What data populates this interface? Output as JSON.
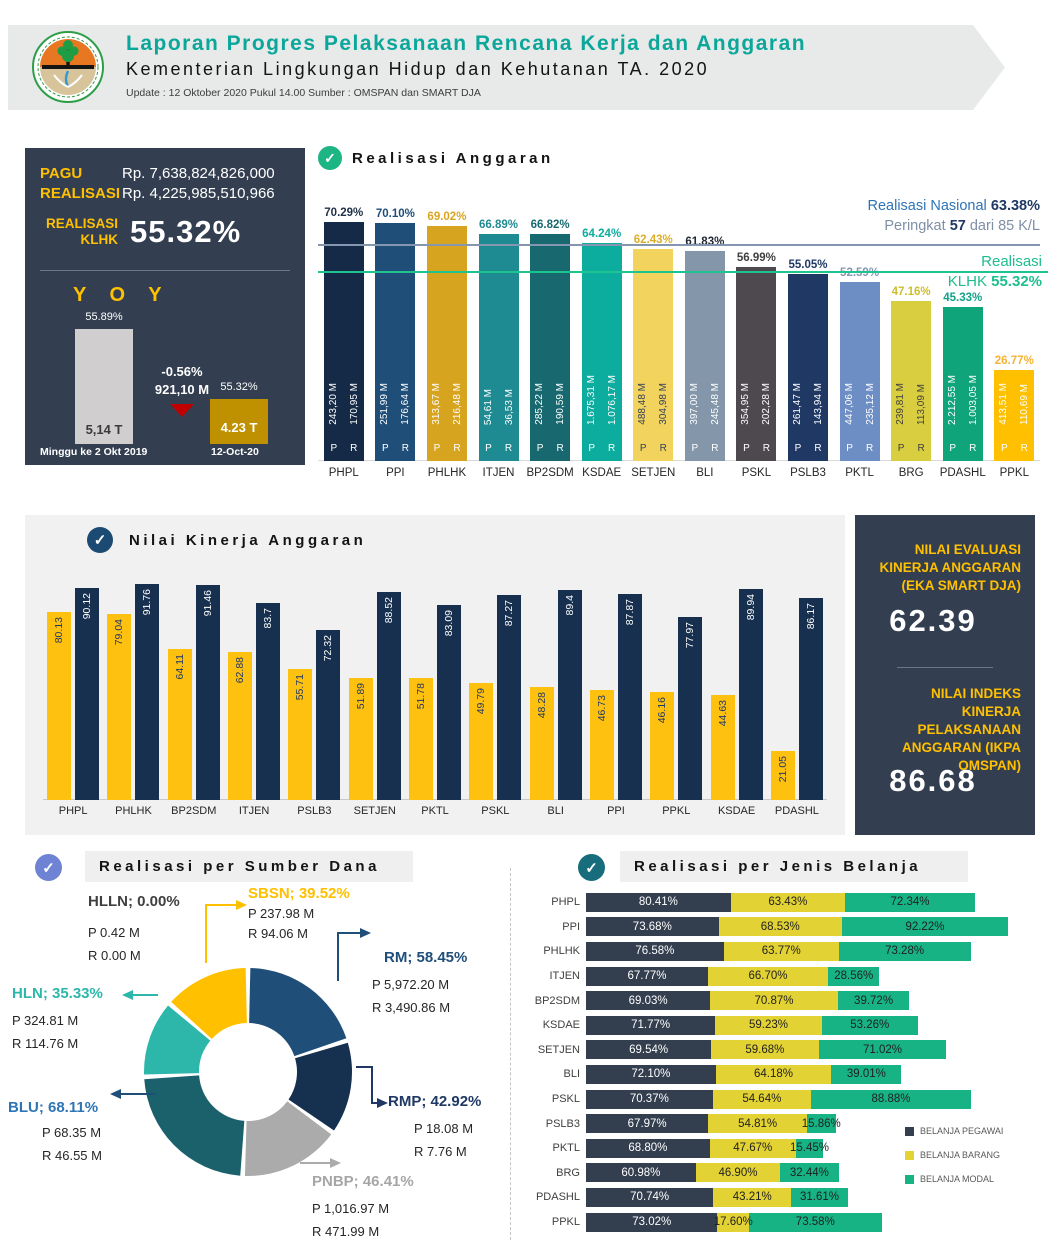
{
  "header": {
    "title": "Laporan Progres Pelaksanaan Rencana Kerja dan Anggaran",
    "subtitle": "Kementerian Lingkungan Hidup dan Kehutanan TA. 2020",
    "update": "Update : 12 Oktober 2020 Pukul 14.00  Sumber : OMSPAN dan SMART DJA"
  },
  "summary_panel": {
    "pagu_label": "PAGU",
    "pagu_value": "Rp. 7,638,824,826,000",
    "realisasi_label": "REALISASI",
    "realisasi_value": "Rp. 4,225,985,510,966",
    "klhk_label_line1": "REALISASI",
    "klhk_label_line2": "KLHK",
    "klhk_value": "55.32%",
    "yoy_title": "Y O Y"
  },
  "section_titles": {
    "realisasi_anggaran": "Realisasi Anggaran",
    "nilai_kinerja": "Nilai Kinerja Anggaran",
    "sumber_dana": "Realisasi per Sumber Dana",
    "jenis_belanja": "Realisasi per Jenis Belanja"
  },
  "eka_panel": {
    "title_lines": [
      "NILAI EVALUASI",
      "KINERJA ANGGARAN",
      "(EKA SMART DJA)"
    ],
    "value": "62.39"
  },
  "ikpa_panel": {
    "title_lines": [
      "NILAI INDEKS KINERJA",
      "PELAKSANAAN",
      "ANGGARAN (IKPA",
      "OMSPAN)"
    ],
    "value": "86.68"
  },
  "chart_data": [
    {
      "id": "yoy",
      "type": "bar",
      "title": "Y O Y",
      "categories": [
        "Minggu ke 2 Okt 2019",
        "12-Oct-20"
      ],
      "values": [
        55.89,
        55.32
      ],
      "value_labels": [
        "55.89%",
        "55.32%"
      ],
      "bar_labels": [
        "5,14 T",
        "4.23 T"
      ],
      "colors": [
        "#D0CECE",
        "#BF9000"
      ],
      "delta": {
        "pct": "-0.56%",
        "amount": "921,10 M",
        "direction": "down",
        "color": "#C00000"
      }
    },
    {
      "id": "realisasi_anggaran",
      "type": "bar",
      "title": "Realisasi Anggaran",
      "ylim": [
        0,
        80
      ],
      "unit": "%",
      "bars": [
        {
          "name": "PHPL",
          "pct": 70.29,
          "pct_label": "70.29%",
          "pagu": "243,20 M",
          "real": "170,95 M",
          "color": "#152A46",
          "pct_color": "#1F3149",
          "text_color": "#FFFFFF"
        },
        {
          "name": "PPI",
          "pct": 70.1,
          "pct_label": "70.10%",
          "pagu": "251,99 M",
          "real": "176,64 M",
          "color": "#1F4E79",
          "pct_color": "#1F4E79",
          "text_color": "#FFFFFF"
        },
        {
          "name": "PHLHK",
          "pct": 69.02,
          "pct_label": "69.02%",
          "pagu": "313,67 M",
          "real": "216,48 M",
          "color": "#D7A420",
          "pct_color": "#D9A521",
          "text_color": "#FFFFFF"
        },
        {
          "name": "ITJEN",
          "pct": 66.89,
          "pct_label": "66.89%",
          "pagu": "54,61 M",
          "real": "36,53 M",
          "color": "#1E8A91",
          "pct_color": "#1E8A91",
          "text_color": "#FFFFFF"
        },
        {
          "name": "BP2SDM",
          "pct": 66.82,
          "pct_label": "66.82%",
          "pagu": "285,22 M",
          "real": "190,59 M",
          "color": "#17696F",
          "pct_color": "#17696F",
          "text_color": "#FFFFFF"
        },
        {
          "name": "KSDAE",
          "pct": 64.24,
          "pct_label": "64.24%",
          "pagu": "1.675,31 M",
          "real": "1.076,17 M",
          "color": "#0CAC9E",
          "pct_color": "#0CAC9E",
          "text_color": "#FFFFFF"
        },
        {
          "name": "SETJEN",
          "pct": 62.43,
          "pct_label": "62.43%",
          "pagu": "488,48 M",
          "real": "304,98 M",
          "color": "#F2D35E",
          "pct_color": "#DDAE28",
          "text_color": "#33425B"
        },
        {
          "name": "BLI",
          "pct": 61.83,
          "pct_label": "61.83%",
          "pagu": "397,00 M",
          "real": "245,48 M",
          "color": "#8496A9",
          "pct_color": "#1F2733",
          "text_color": "#FFFFFF"
        },
        {
          "name": "PSKL",
          "pct": 56.99,
          "pct_label": "56.99%",
          "pagu": "354,95 M",
          "real": "202,28 M",
          "color": "#4E494E",
          "pct_color": "#3F3F3F",
          "text_color": "#FFFFFF"
        },
        {
          "name": "PSLB3",
          "pct": 55.05,
          "pct_label": "55.05%",
          "pagu": "261,47 M",
          "real": "143,94 M",
          "color": "#203864",
          "pct_color": "#203864",
          "text_color": "#FFFFFF"
        },
        {
          "name": "PKTL",
          "pct": 52.59,
          "pct_label": "52.59%",
          "pagu": "447,06 M",
          "real": "235,12 M",
          "color": "#6D8EC4",
          "pct_color": "#8496B0",
          "text_color": "#FFFFFF"
        },
        {
          "name": "BRG",
          "pct": 47.16,
          "pct_label": "47.16%",
          "pagu": "239,81 M",
          "real": "113,09 M",
          "color": "#D8CE40",
          "pct_color": "#CDBE2E",
          "text_color": "#3F3F3F"
        },
        {
          "name": "PDASHL",
          "pct": 45.33,
          "pct_label": "45.33%",
          "pagu": "2.212,55 M",
          "real": "1.003,05 M",
          "color": "#10A47B",
          "pct_color": "#12A186",
          "text_color": "#FFFFFF"
        },
        {
          "name": "PPKL",
          "pct": 26.77,
          "pct_label": "26.77%",
          "pagu": "413,51 M",
          "real": "110,69 M",
          "color": "#FFC000",
          "pct_color": "#F5B335",
          "text_color": "#FFFFFF"
        }
      ],
      "ref_lines": [
        {
          "id": "nasional",
          "pct": 63.38,
          "color": "#8496B0"
        },
        {
          "id": "klhk",
          "pct": 55.32,
          "color": "#1EC48F"
        }
      ],
      "annotations": {
        "national_label": "Realisasi Nasional",
        "national_value": "63.38%",
        "rank_label": "Peringkat",
        "rank_value": "57",
        "rank_suffix": "dari 85 K/L",
        "klhk_line1": "Realisasi",
        "klhk_line2": "KLHK",
        "klhk_value": "55.32%"
      }
    },
    {
      "id": "nilai_kinerja",
      "type": "grouped-bar",
      "title": "Nilai Kinerja Anggaran",
      "ylim": [
        0,
        100
      ],
      "categories": [
        "PHPL",
        "PHLHK",
        "BP2SDM",
        "ITJEN",
        "PSLB3",
        "SETJEN",
        "PKTL",
        "PSKL",
        "BLI",
        "PPI",
        "PPKL",
        "KSDAE",
        "PDASHL"
      ],
      "series": [
        {
          "color": "#FFC110",
          "text": "#1F3864",
          "values": [
            80.13,
            79.04,
            64.11,
            62.88,
            55.71,
            51.89,
            51.78,
            49.79,
            48.28,
            46.73,
            46.16,
            44.63,
            21.05
          ],
          "labels": [
            "80.13",
            "79.04",
            "64.11",
            "62.88",
            "55.71",
            "51.89",
            "51.78",
            "49.79",
            "48.28",
            "46.73",
            "46.16",
            "44.63",
            "21.05"
          ]
        },
        {
          "color": "#17304F",
          "text": "#FFFFFF",
          "values": [
            90.12,
            91.76,
            91.46,
            83.7,
            72.32,
            88.52,
            83.09,
            87.27,
            89.4,
            87.87,
            77.97,
            89.94,
            86.17
          ],
          "labels": [
            "90.12",
            "91.76",
            "91.46",
            "83.7",
            "72.32",
            "88.52",
            "83.09",
            "87.27",
            "89.4",
            "87.87",
            "77.97",
            "89.94",
            "86.17"
          ]
        }
      ]
    },
    {
      "id": "sumber_dana",
      "type": "donut",
      "title": "Realisasi per Sumber Dana",
      "segments": [
        {
          "name": "RM",
          "value": 58.45,
          "color": "#1F4E79"
        },
        {
          "name": "RMP",
          "value": 42.92,
          "color": "#16304F"
        },
        {
          "name": "PNBP",
          "value": 46.41,
          "color": "#ABABAB"
        },
        {
          "name": "BLU",
          "value": 68.11,
          "color": "#1A616C"
        },
        {
          "name": "HLN",
          "value": 35.33,
          "color": "#2CB7AA"
        },
        {
          "name": "SBSN",
          "value": 39.52,
          "color": "#FFC000"
        },
        {
          "name": "HLLN",
          "value": 0.0,
          "color": "#808080"
        }
      ],
      "callouts": [
        {
          "title": "HLLN; 0.00%",
          "p": "P 0.42 M",
          "r": "R 0.00 M",
          "color": "#404040"
        },
        {
          "title": "SBSN; 39.52%",
          "p": "P 237.98 M",
          "r": "R  94.06 M",
          "color": "#FFC000"
        },
        {
          "title": "RM; 58.45%",
          "p": "P 5,972.20 M",
          "r": "R 3,490.86 M",
          "color": "#1F4E79"
        },
        {
          "title": "HLN; 35.33%",
          "p": "P 324.81 M",
          "r": "R 114.76 M",
          "color": "#2CB7AA"
        },
        {
          "title": "BLU; 68.11%",
          "p": "P 68.35 M",
          "r": "R 46.55 M",
          "color": "#2E75B6"
        },
        {
          "title": "RMP; 42.92%",
          "p": "P 18.08 M",
          "r": "R  7.76 M",
          "color": "#1F3864"
        },
        {
          "title": "PNBP; 46.41%",
          "p": "P 1,016.97 M",
          "r": "R  471.99 M",
          "color": "#A6A6A6"
        }
      ]
    },
    {
      "id": "jenis_belanja",
      "type": "stacked-bar",
      "title": "Realisasi per Jenis Belanja",
      "unit": "%",
      "categories": [
        "PHPL",
        "PPI",
        "PHLHK",
        "ITJEN",
        "BP2SDM",
        "KSDAE",
        "SETJEN",
        "BLI",
        "PSKL",
        "PSLB3",
        "PKTL",
        "BRG",
        "PDASHL",
        "PPKL"
      ],
      "series": [
        {
          "name": "BELANJA PEGAWAI",
          "color": "#333E4F",
          "text": "#FFFFFF",
          "values": [
            80.41,
            73.68,
            76.58,
            67.77,
            69.03,
            71.77,
            69.54,
            72.1,
            70.37,
            67.97,
            68.8,
            60.98,
            70.74,
            73.02
          ]
        },
        {
          "name": "BELANJA BARANG",
          "color": "#E2D234",
          "text": "#1F1F1F",
          "values": [
            63.43,
            68.53,
            63.77,
            66.7,
            70.87,
            59.23,
            59.68,
            64.18,
            54.64,
            54.81,
            47.67,
            46.9,
            43.21,
            17.6
          ]
        },
        {
          "name": "BELANJA MODAL",
          "color": "#17B384",
          "text": "#1F1F1F",
          "values": [
            72.34,
            92.22,
            73.28,
            28.56,
            39.72,
            53.26,
            71.02,
            39.01,
            88.88,
            15.86,
            15.45,
            32.44,
            31.61,
            73.58
          ]
        }
      ]
    }
  ]
}
